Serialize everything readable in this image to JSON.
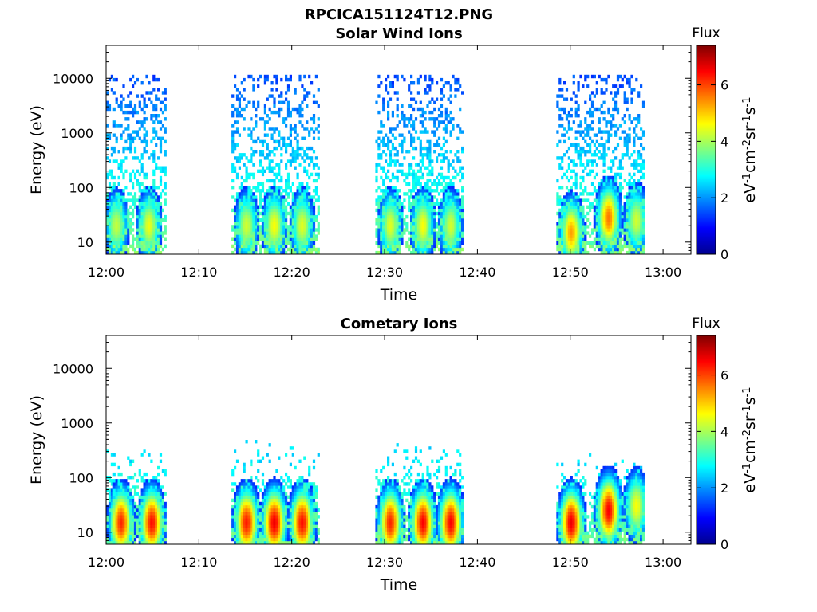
{
  "figure_title": "RPCICA151124T12.PNG",
  "colorbar": {
    "title": "Flux",
    "unit_main": "eV",
    "unit_parts": [
      "eV",
      "-1",
      "cm",
      "-2",
      "sr",
      "-1",
      "s",
      "-1"
    ],
    "range": [
      0,
      7.4
    ],
    "ticks": [
      "0",
      "2",
      "4",
      "6"
    ],
    "colormap": "jet"
  },
  "chart_data": [
    {
      "type": "heatmap",
      "title": "Solar Wind Ions",
      "xlabel": "Time",
      "ylabel": "Energy (eV)",
      "x_ticks": [
        "12:00",
        "12:10",
        "12:20",
        "12:30",
        "12:40",
        "12:50",
        "13:00"
      ],
      "y_ticks": [
        "10",
        "100",
        "1000",
        "10000"
      ],
      "y_scale": "log",
      "ylim": [
        6,
        40000
      ],
      "xlim": [
        "12:00",
        "13:03"
      ],
      "bursts": [
        {
          "start": "12:00",
          "end": "12:06.5",
          "peaks": [
            {
              "t": "12:01",
              "e": 20,
              "flux": 4.2
            },
            {
              "t": "12:04.5",
              "e": 20,
              "flux": 4.5
            }
          ],
          "diffuse_max_e": 12000
        },
        {
          "start": "12:13.5",
          "end": "12:23",
          "peaks": [
            {
              "t": "12:15",
              "e": 20,
              "flux": 4.3
            },
            {
              "t": "12:18",
              "e": 20,
              "flux": 4.6
            },
            {
              "t": "12:21",
              "e": 20,
              "flux": 4.4
            }
          ],
          "diffuse_max_e": 12000
        },
        {
          "start": "12:29",
          "end": "12:38.5",
          "peaks": [
            {
              "t": "12:30.5",
              "e": 20,
              "flux": 4.4
            },
            {
              "t": "12:34",
              "e": 20,
              "flux": 4.6
            },
            {
              "t": "12:37",
              "e": 20,
              "flux": 4.3
            }
          ],
          "diffuse_max_e": 12000
        },
        {
          "start": "12:48.5",
          "end": "12:58",
          "peaks": [
            {
              "t": "12:50",
              "e": 15,
              "flux": 5.3
            },
            {
              "t": "12:54",
              "e": 28,
              "flux": 5.6
            },
            {
              "t": "12:57",
              "e": 25,
              "flux": 4.3
            }
          ],
          "diffuse_max_e": 12000
        }
      ]
    },
    {
      "type": "heatmap",
      "title": "Cometary Ions",
      "xlabel": "Time",
      "ylabel": "Energy (eV)",
      "x_ticks": [
        "12:00",
        "12:10",
        "12:20",
        "12:30",
        "12:40",
        "12:50",
        "13:00"
      ],
      "y_ticks": [
        "10",
        "100",
        "1000",
        "10000"
      ],
      "y_scale": "log",
      "ylim": [
        6,
        40000
      ],
      "xlim": [
        "12:00",
        "13:03"
      ],
      "bursts": [
        {
          "start": "12:00",
          "end": "12:06.5",
          "peaks": [
            {
              "t": "12:01.5",
              "e": 15,
              "flux": 6.2
            },
            {
              "t": "12:04.8",
              "e": 15,
              "flux": 6.4
            }
          ],
          "diffuse_max_e": 500
        },
        {
          "start": "12:13.5",
          "end": "12:23",
          "peaks": [
            {
              "t": "12:15",
              "e": 15,
              "flux": 6.3
            },
            {
              "t": "12:18",
              "e": 15,
              "flux": 6.6
            },
            {
              "t": "12:21",
              "e": 15,
              "flux": 6.4
            }
          ],
          "diffuse_max_e": 500
        },
        {
          "start": "12:29",
          "end": "12:38.5",
          "peaks": [
            {
              "t": "12:30.5",
              "e": 15,
              "flux": 6.2
            },
            {
              "t": "12:34",
              "e": 15,
              "flux": 6.5
            },
            {
              "t": "12:37",
              "e": 15,
              "flux": 6.5
            }
          ],
          "diffuse_max_e": 500
        },
        {
          "start": "12:48.5",
          "end": "12:58",
          "peaks": [
            {
              "t": "12:50",
              "e": 15,
              "flux": 6.6
            },
            {
              "t": "12:54",
              "e": 25,
              "flux": 6.5
            },
            {
              "t": "12:57",
              "e": 30,
              "flux": 4.6
            }
          ],
          "diffuse_max_e": 300
        }
      ]
    }
  ]
}
